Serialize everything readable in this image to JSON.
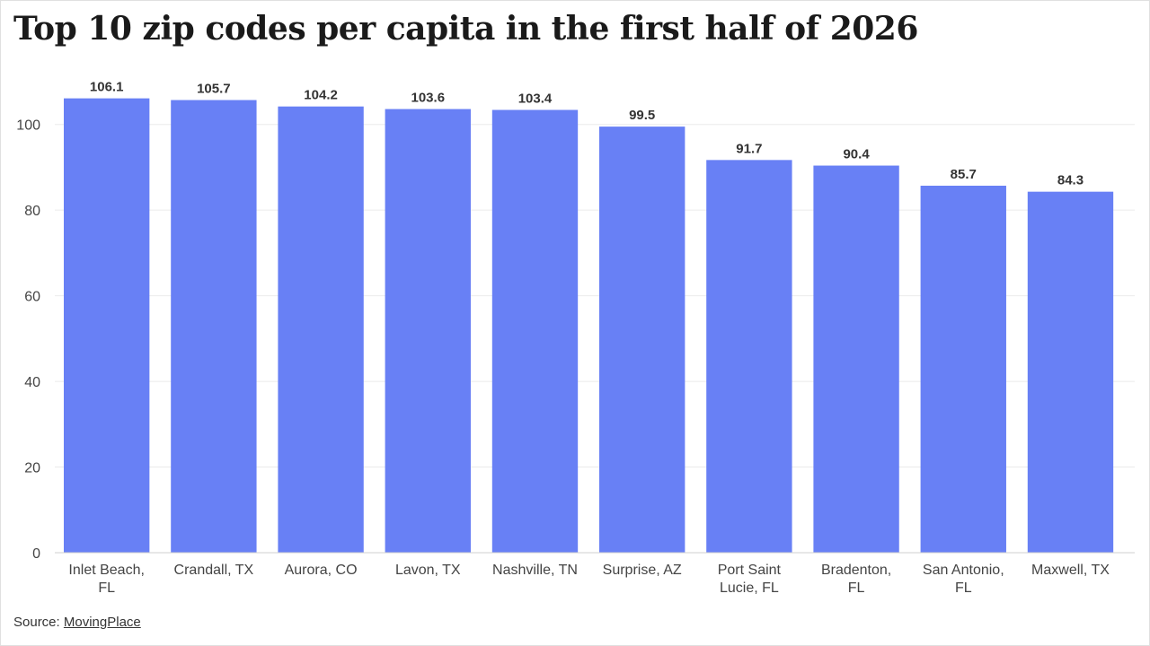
{
  "page": {
    "title": "Top 10 zip codes per capita in the first half of 2026",
    "source_label": "Source:",
    "source_link": "MovingPlace"
  },
  "colors": {
    "bar": "#6880f5",
    "grid": "#ebebeb",
    "axis": "#cfcfcf",
    "tick_text": "#444444",
    "label_text": "#333333"
  },
  "chart_data": {
    "type": "bar",
    "title": "Top 10 zip codes per capita in the first half of 2026",
    "xlabel": "",
    "ylabel": "",
    "ylim": [
      0,
      110
    ],
    "yticks": [
      0,
      20,
      40,
      60,
      80,
      100
    ],
    "grid": "horizontal",
    "legend": "none",
    "categories": [
      [
        "Inlet Beach,",
        "FL"
      ],
      [
        "Crandall, TX"
      ],
      [
        "Aurora, CO"
      ],
      [
        "Lavon, TX"
      ],
      [
        "Nashville, TN"
      ],
      [
        "Surprise, AZ"
      ],
      [
        "Port Saint",
        "Lucie, FL"
      ],
      [
        "Bradenton,",
        "FL"
      ],
      [
        "San Antonio,",
        "FL"
      ],
      [
        "Maxwell, TX"
      ]
    ],
    "values": [
      106.1,
      105.7,
      104.2,
      103.6,
      103.4,
      99.5,
      91.7,
      90.4,
      85.7,
      84.3
    ],
    "data_labels": [
      "106.1",
      "105.7",
      "104.2",
      "103.6",
      "103.4",
      "99.5",
      "91.7",
      "90.4",
      "85.7",
      "84.3"
    ]
  }
}
